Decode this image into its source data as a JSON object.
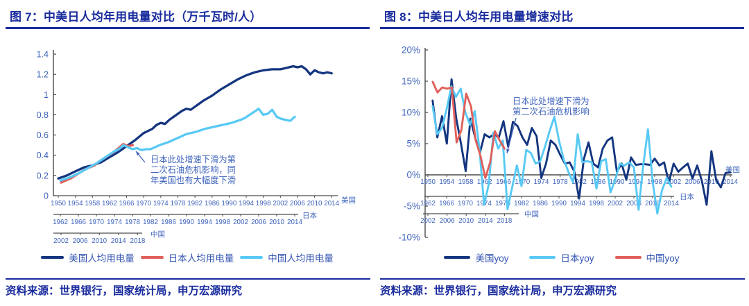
{
  "panels": [
    {
      "title": "图 7：中美日人均年用电量对比（万千瓦时/人）",
      "source": "资料来源：世界银行，国家统计局，申万宏源研究",
      "legend": [
        {
          "label": "美国人均用电量",
          "color": "#14357F"
        },
        {
          "label": "日本人均用电量",
          "color": "#E0605C"
        },
        {
          "label": "中国人均用电量",
          "color": "#58C9F4"
        }
      ]
    },
    {
      "title": "图 8：中美日人均年用电量增速对比",
      "source": "资料来源：世界银行，国家统计局，申万宏源研究",
      "legend": [
        {
          "label": "美国yoy",
          "color": "#14357F"
        },
        {
          "label": "日本yoy",
          "color": "#58C9F4"
        },
        {
          "label": "中国yoy",
          "color": "#E0605C"
        }
      ]
    }
  ],
  "colors": {
    "navy": "#14357F",
    "red": "#E0605C",
    "light_blue": "#58C9F4",
    "heading_navy": "#1A2C9E",
    "axis_label_blue": "#3E63BC"
  },
  "chart_data": [
    {
      "type": "line",
      "title": "中美日人均年用电量对比",
      "unit": "万千瓦时/人",
      "legend_position": "bottom",
      "y_axis": {
        "range": [
          0,
          1.4
        ],
        "ticks": [
          1.4,
          1.2,
          1,
          0.8,
          0.6,
          0.4,
          0.2,
          0
        ],
        "tick_labels": [
          "1.4",
          "1.2",
          "1",
          "0.8",
          "0.6",
          "0.4",
          "0.2",
          "0"
        ]
      },
      "x_axes": [
        {
          "id": "us",
          "country": "美国",
          "tick_years": [
            1950,
            1954,
            1958,
            1962,
            1966,
            1970,
            1974,
            1978,
            1982,
            1986,
            1990,
            1994,
            1998,
            2002,
            2006,
            2010,
            2014
          ]
        },
        {
          "id": "jp",
          "country": "日本",
          "tick_years": [
            1962,
            1966,
            1970,
            1974,
            1978,
            1982,
            1986,
            1990,
            1994,
            1998,
            2002,
            2006,
            2010,
            2014
          ]
        },
        {
          "id": "cn",
          "country": "中国",
          "tick_years": [
            2002,
            2006,
            2010,
            2014,
            2018
          ]
        }
      ],
      "series": [
        {
          "name": "美国人均用电量",
          "color": "#14357F",
          "axis": "us",
          "years": [
            1950,
            1952,
            1954,
            1956,
            1958,
            1960,
            1962,
            1964,
            1966,
            1968,
            1970,
            1971,
            1972,
            1973,
            1974,
            1975,
            1976,
            1977,
            1978,
            1979,
            1980,
            1981,
            1982,
            1983,
            1984,
            1986,
            1988,
            1990,
            1992,
            1994,
            1996,
            1998,
            2000,
            2002,
            2004,
            2005,
            2006,
            2007,
            2008,
            2009,
            2010,
            2011,
            2012,
            2013,
            2014
          ],
          "values": [
            0.17,
            0.2,
            0.24,
            0.28,
            0.3,
            0.33,
            0.38,
            0.43,
            0.49,
            0.55,
            0.62,
            0.64,
            0.66,
            0.7,
            0.72,
            0.71,
            0.75,
            0.78,
            0.81,
            0.84,
            0.86,
            0.85,
            0.88,
            0.91,
            0.94,
            0.99,
            1.05,
            1.1,
            1.15,
            1.19,
            1.22,
            1.24,
            1.25,
            1.25,
            1.27,
            1.28,
            1.27,
            1.28,
            1.25,
            1.2,
            1.24,
            1.22,
            1.21,
            1.22,
            1.21
          ]
        },
        {
          "name": "日本人均用电量",
          "color": "#E0605C",
          "axis": "cn",
          "years": [
            2002,
            2003,
            2004,
            2005,
            2006,
            2007,
            2008,
            2009,
            2010,
            2011,
            2012,
            2013,
            2014,
            2015,
            2016,
            2017
          ],
          "values": [
            0.13,
            0.15,
            0.17,
            0.2,
            0.23,
            0.26,
            0.28,
            0.3,
            0.34,
            0.37,
            0.4,
            0.43,
            0.47,
            0.51,
            0.49,
            0.5
          ]
        },
        {
          "name": "中国人均用电量",
          "color": "#58C9F4",
          "axis": "jp",
          "years": [
            1962,
            1964,
            1966,
            1968,
            1970,
            1972,
            1973,
            1974,
            1975,
            1976,
            1977,
            1978,
            1979,
            1980,
            1981,
            1982,
            1983,
            1984,
            1986,
            1988,
            1990,
            1992,
            1994,
            1996,
            1998,
            2000,
            2002,
            2003,
            2004,
            2005,
            2006,
            2007,
            2008,
            2009,
            2010,
            2011,
            2012,
            2013,
            2014
          ],
          "values": [
            0.15,
            0.18,
            0.22,
            0.27,
            0.32,
            0.38,
            0.41,
            0.44,
            0.46,
            0.5,
            0.48,
            0.46,
            0.47,
            0.45,
            0.46,
            0.46,
            0.48,
            0.5,
            0.53,
            0.57,
            0.61,
            0.63,
            0.66,
            0.68,
            0.7,
            0.72,
            0.75,
            0.77,
            0.8,
            0.83,
            0.86,
            0.8,
            0.81,
            0.85,
            0.78,
            0.76,
            0.75,
            0.74,
            0.78
          ]
        }
      ],
      "annotation": {
        "lines": [
          "日本此处增速下滑为第",
          "二次石油危机影响，同",
          "年美国也有大幅度下滑"
        ]
      }
    },
    {
      "type": "line",
      "title": "中美日人均年用电量增速对比",
      "unit": "%",
      "legend_position": "bottom",
      "y_axis": {
        "range": [
          -10,
          20
        ],
        "ticks": [
          20,
          15,
          10,
          5,
          0,
          -5,
          -10
        ],
        "tick_labels": [
          "20%",
          "15%",
          "10%",
          "5%",
          "0%",
          "-5%",
          "-10%"
        ]
      },
      "x_axes": [
        {
          "id": "us",
          "country": "美国",
          "tick_years": [
            1950,
            1954,
            1958,
            1962,
            1966,
            1970,
            1974,
            1978,
            1982,
            1986,
            1990,
            1994,
            1998,
            2002,
            2006,
            2010,
            2014
          ]
        },
        {
          "id": "jp",
          "country": "日本",
          "tick_years": [
            1962,
            1966,
            1970,
            1974,
            1978,
            1982,
            1986,
            1990,
            1994,
            1998,
            2002,
            2006,
            2010,
            2014
          ]
        },
        {
          "id": "cn",
          "country": "中国",
          "tick_years": [
            2002,
            2006,
            2010,
            2014,
            2018
          ]
        }
      ],
      "series": [
        {
          "name": "美国yoy",
          "color": "#14357F",
          "axis": "us",
          "start_year": 1951,
          "values": [
            11.9,
            6.0,
            9.4,
            5.0,
            15.3,
            9.0,
            5.0,
            0.6,
            9.0,
            6.0,
            3.5,
            6.5,
            6.0,
            6.5,
            6.0,
            8.6,
            4.5,
            8.5,
            7.8,
            6.0,
            4.8,
            7.5,
            6.2,
            -0.5,
            1.8,
            5.5,
            4.8,
            3.2,
            1.8,
            2.0,
            0.5,
            -3.8,
            2.5,
            5.2,
            1.8,
            1.2,
            4.2,
            5.5,
            6.0,
            0.5,
            1.8,
            -0.8,
            2.8,
            1.6,
            1.7,
            1.7,
            1.6,
            2.6,
            1.5,
            2.0,
            -1.2,
            1.8,
            0.5,
            1.2,
            1.8,
            -0.6,
            1.5,
            -1.0,
            -4.8,
            3.8,
            -0.8,
            -2.0,
            0.3,
            0.4
          ]
        },
        {
          "name": "日本yoy",
          "color": "#58C9F4",
          "axis": "jp",
          "start_year": 1963,
          "values": [
            11.0,
            6.5,
            7.5,
            10.5,
            14.2,
            12.5,
            13.8,
            10.0,
            8.0,
            10.2,
            4.2,
            -4.8,
            -1.5,
            6.8,
            4.2,
            5.5,
            -5.5,
            -2.0,
            1.5,
            -1.8,
            4.0,
            3.5,
            1.8,
            2.2,
            4.5,
            7.0,
            9.3,
            5.5,
            2.5,
            0.5,
            -1.2,
            6.5,
            2.0,
            2.2,
            2.0,
            -2.2,
            2.2,
            2.5,
            -2.8,
            -0.8,
            1.8,
            1.5,
            2.0,
            1.2,
            -5.6,
            1.5,
            7.3,
            -1.0,
            -6.2,
            -2.5,
            -0.5,
            -1.9
          ]
        },
        {
          "name": "中国yoy",
          "color": "#E0605C",
          "axis": "cn",
          "start_year": 2003,
          "values": [
            14.9,
            13.2,
            14.0,
            13.8,
            14.0,
            5.2,
            7.2,
            13.0,
            11.0,
            5.5,
            3.0,
            -0.5,
            2.0,
            7.0,
            5.5,
            4.2
          ]
        }
      ],
      "annotation": {
        "lines": [
          "日本此处增速下滑为",
          "第二次石油危机影响"
        ]
      }
    }
  ]
}
